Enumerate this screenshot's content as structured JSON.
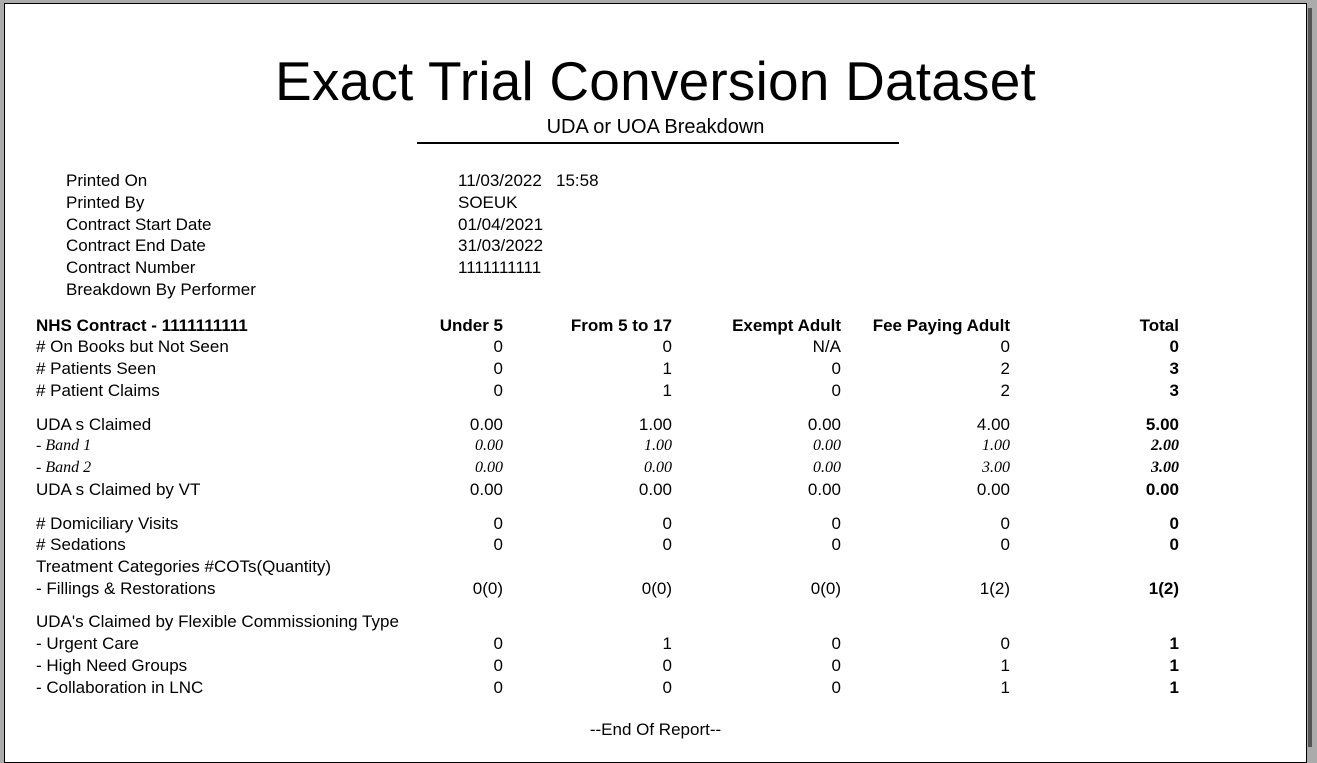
{
  "report": {
    "title": "Exact Trial Conversion Dataset",
    "subtitle": "UDA or UOA Breakdown",
    "footer": "--End Of Report--"
  },
  "info": [
    {
      "label": "Printed On",
      "value": "11/03/2022   15:58"
    },
    {
      "label": "Printed By",
      "value": "SOEUK"
    },
    {
      "label": "Contract Start Date",
      "value": "01/04/2021"
    },
    {
      "label": "Contract End Date",
      "value": "31/03/2022"
    },
    {
      "label": "Contract Number",
      "value": "1111111111"
    },
    {
      "label": "Breakdown By Performer",
      "value": ""
    }
  ],
  "table": {
    "headers": [
      "NHS Contract - 1111111111",
      "Under 5",
      "From 5 to 17",
      "Exempt Adult",
      "Fee Paying Adult",
      "Total"
    ],
    "rows": [
      {
        "label": "# On Books but Not Seen",
        "values": [
          "0",
          "0",
          "N/A",
          "0",
          "0"
        ],
        "style": "normal"
      },
      {
        "label": "# Patients Seen",
        "values": [
          "0",
          "1",
          "0",
          "2",
          "3"
        ],
        "style": "normal"
      },
      {
        "label": "# Patient Claims",
        "values": [
          "0",
          "1",
          "0",
          "2",
          "3"
        ],
        "style": "normal"
      },
      {
        "label": "UDA s Claimed",
        "values": [
          "0.00",
          "1.00",
          "0.00",
          "4.00",
          "5.00"
        ],
        "style": "normal"
      },
      {
        "label": " - Band 1",
        "values": [
          "0.00",
          "1.00",
          "0.00",
          "1.00",
          "2.00"
        ],
        "style": "italic"
      },
      {
        "label": " - Band 2",
        "values": [
          "0.00",
          "0.00",
          "0.00",
          "3.00",
          "3.00"
        ],
        "style": "italic"
      },
      {
        "label": "UDA s Claimed by VT",
        "values": [
          "0.00",
          "0.00",
          "0.00",
          "0.00",
          "0.00"
        ],
        "style": "normal"
      },
      {
        "label": "# Domiciliary Visits",
        "values": [
          "0",
          "0",
          "0",
          "0",
          "0"
        ],
        "style": "normal"
      },
      {
        "label": "# Sedations",
        "values": [
          "0",
          "0",
          "0",
          "0",
          "0"
        ],
        "style": "normal"
      },
      {
        "label": "Treatment Categories #COTs(Quantity)",
        "values": [
          "",
          "",
          "",
          "",
          ""
        ],
        "style": "normal"
      },
      {
        "label": " - Fillings & Restorations",
        "values": [
          "0(0)",
          "0(0)",
          "0(0)",
          "1(2)",
          "1(2)"
        ],
        "style": "normal"
      },
      {
        "label": "UDA's Claimed by Flexible Commissioning Type",
        "values": [
          "",
          "",
          "",
          "",
          ""
        ],
        "style": "normal"
      },
      {
        "label": " - Urgent Care",
        "values": [
          "0",
          "1",
          "0",
          "0",
          "1"
        ],
        "style": "normal"
      },
      {
        "label": " - High Need Groups",
        "values": [
          "0",
          "0",
          "0",
          "1",
          "1"
        ],
        "style": "normal"
      },
      {
        "label": " - Collaboration in LNC",
        "values": [
          "0",
          "0",
          "0",
          "1",
          "1"
        ],
        "style": "normal"
      }
    ]
  }
}
